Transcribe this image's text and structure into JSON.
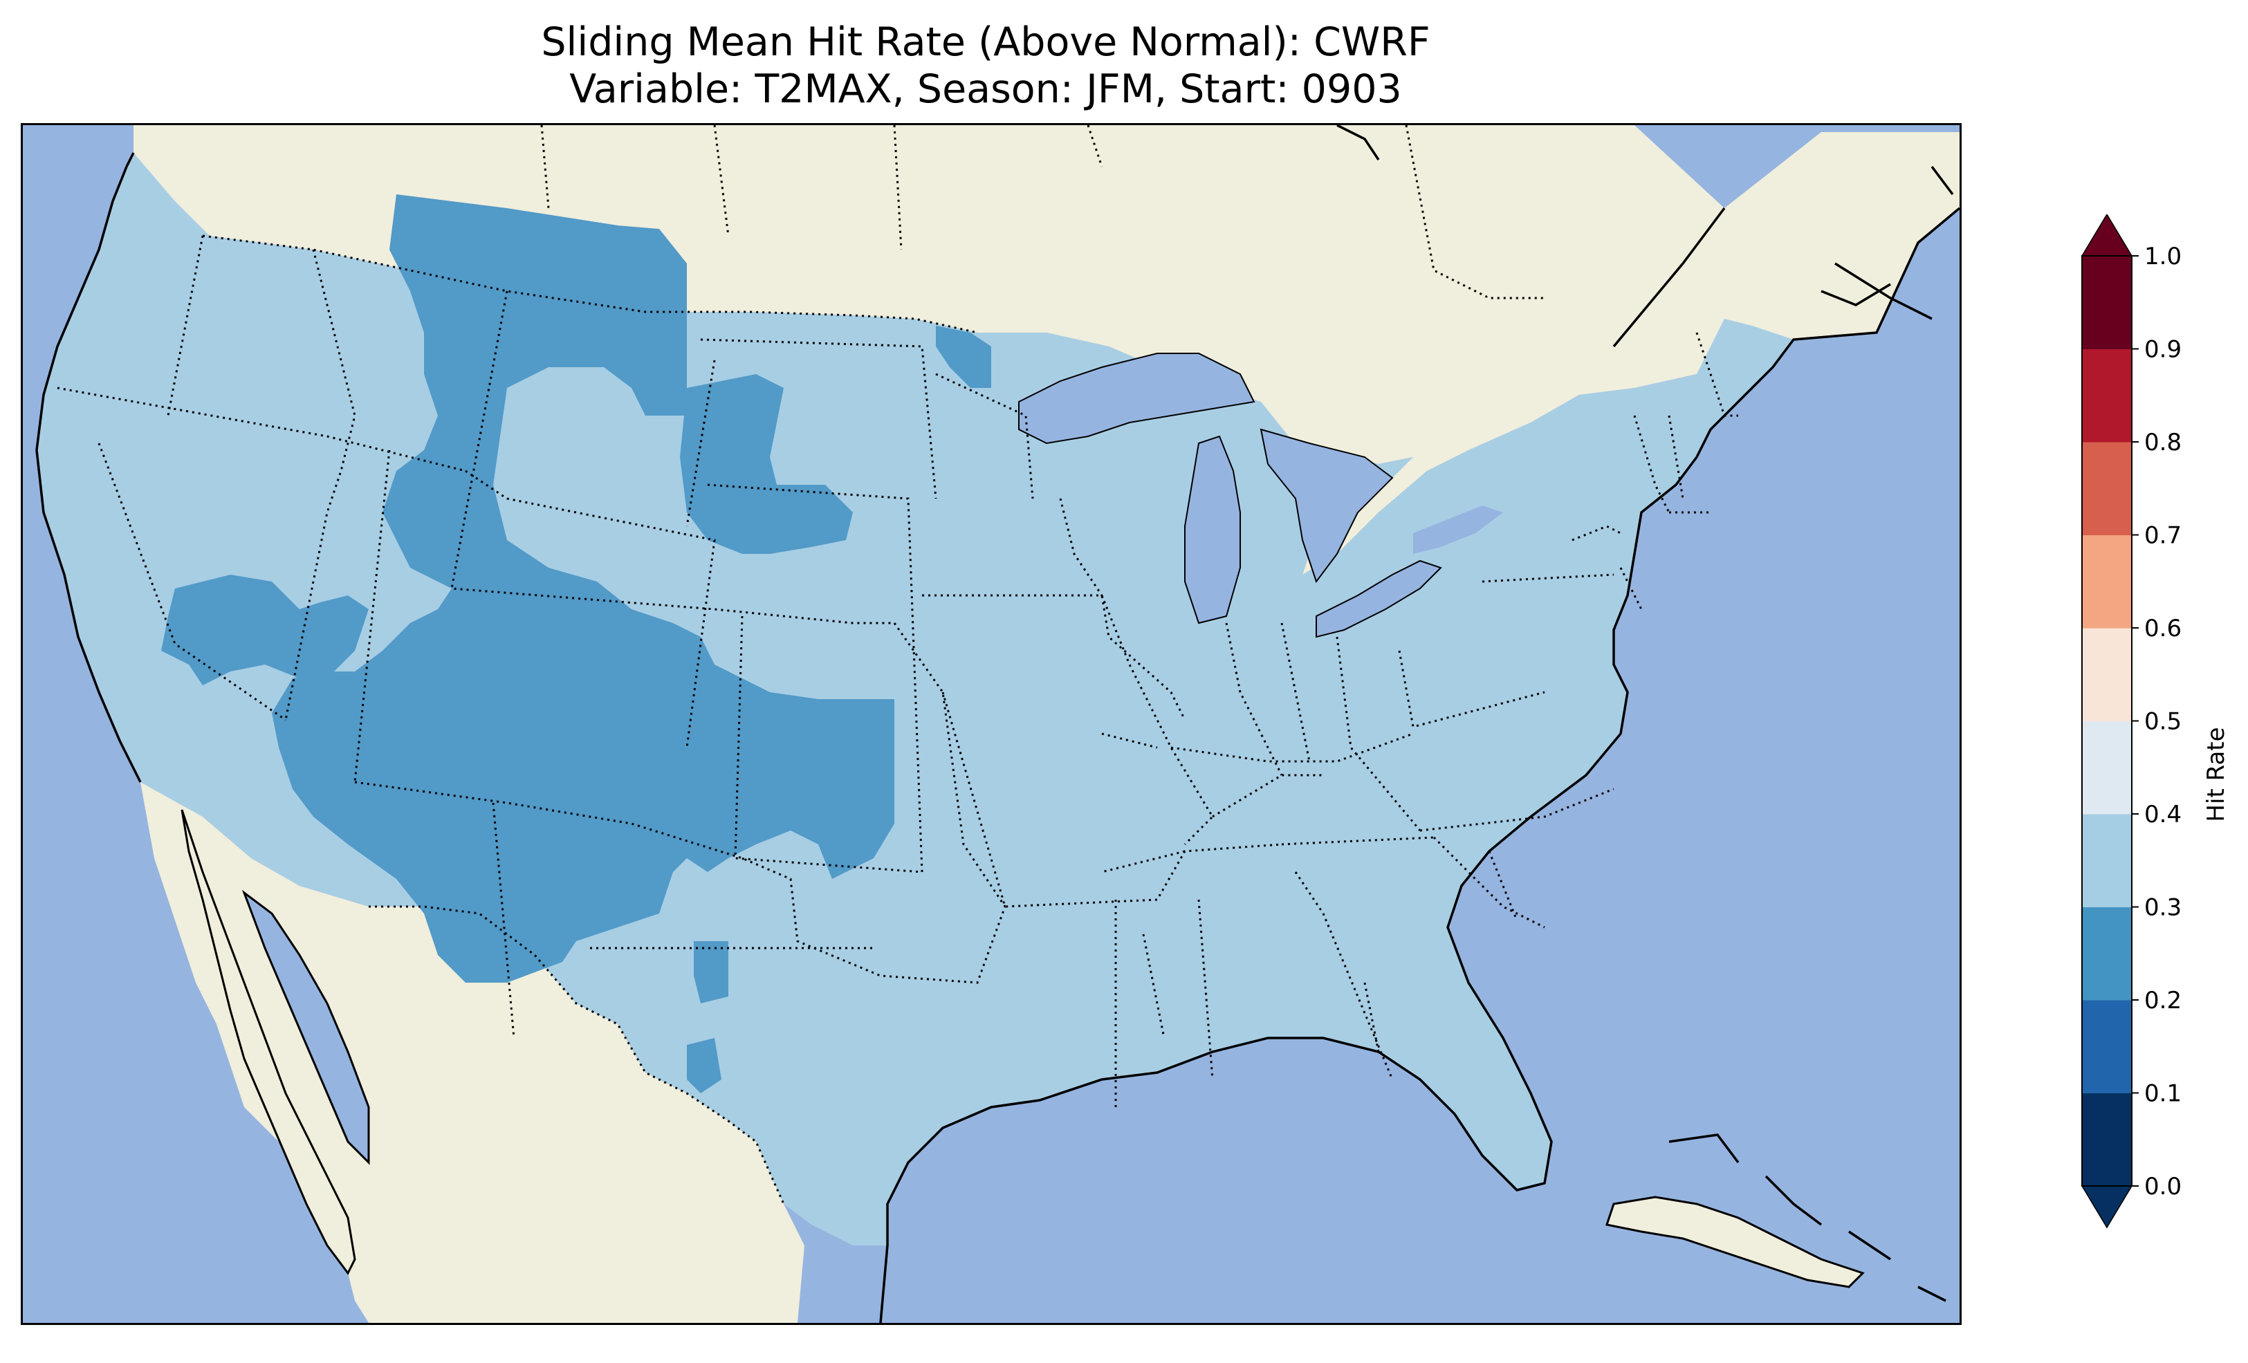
{
  "title": {
    "line1": "Sliding Mean Hit Rate (Above Normal): CWRF",
    "line2": "Variable: T2MAX, Season: JFM, Start: 0903"
  },
  "map": {
    "projection": "lambert-conformal",
    "region": "Contiguous United States",
    "colors": {
      "ocean": "#96b4e0",
      "land": "#f0eedc",
      "lake": "#96b4e0",
      "coastline": "#000000",
      "border": "#000000"
    },
    "field_classes": [
      {
        "range": "0.3-0.4",
        "color": "#a8cee4",
        "coverage": "most of the domain"
      },
      {
        "range": "0.2-0.3",
        "color": "#529ac8",
        "coverage": "Rocky Mountains, Great Plains, Southwest"
      }
    ]
  },
  "colorbar": {
    "label": "Hit Rate",
    "extend": "both",
    "ticks": [
      "0.0",
      "0.1",
      "0.2",
      "0.3",
      "0.4",
      "0.5",
      "0.6",
      "0.7",
      "0.8",
      "0.9",
      "1.0"
    ],
    "colors": [
      "#053061",
      "#2166ac",
      "#4393c3",
      "#a5cde3",
      "#dfe9f2",
      "#f9e4d8",
      "#f4a582",
      "#d6604d",
      "#b2182b",
      "#67001f"
    ],
    "under_color": "#053061",
    "over_color": "#67001f"
  }
}
